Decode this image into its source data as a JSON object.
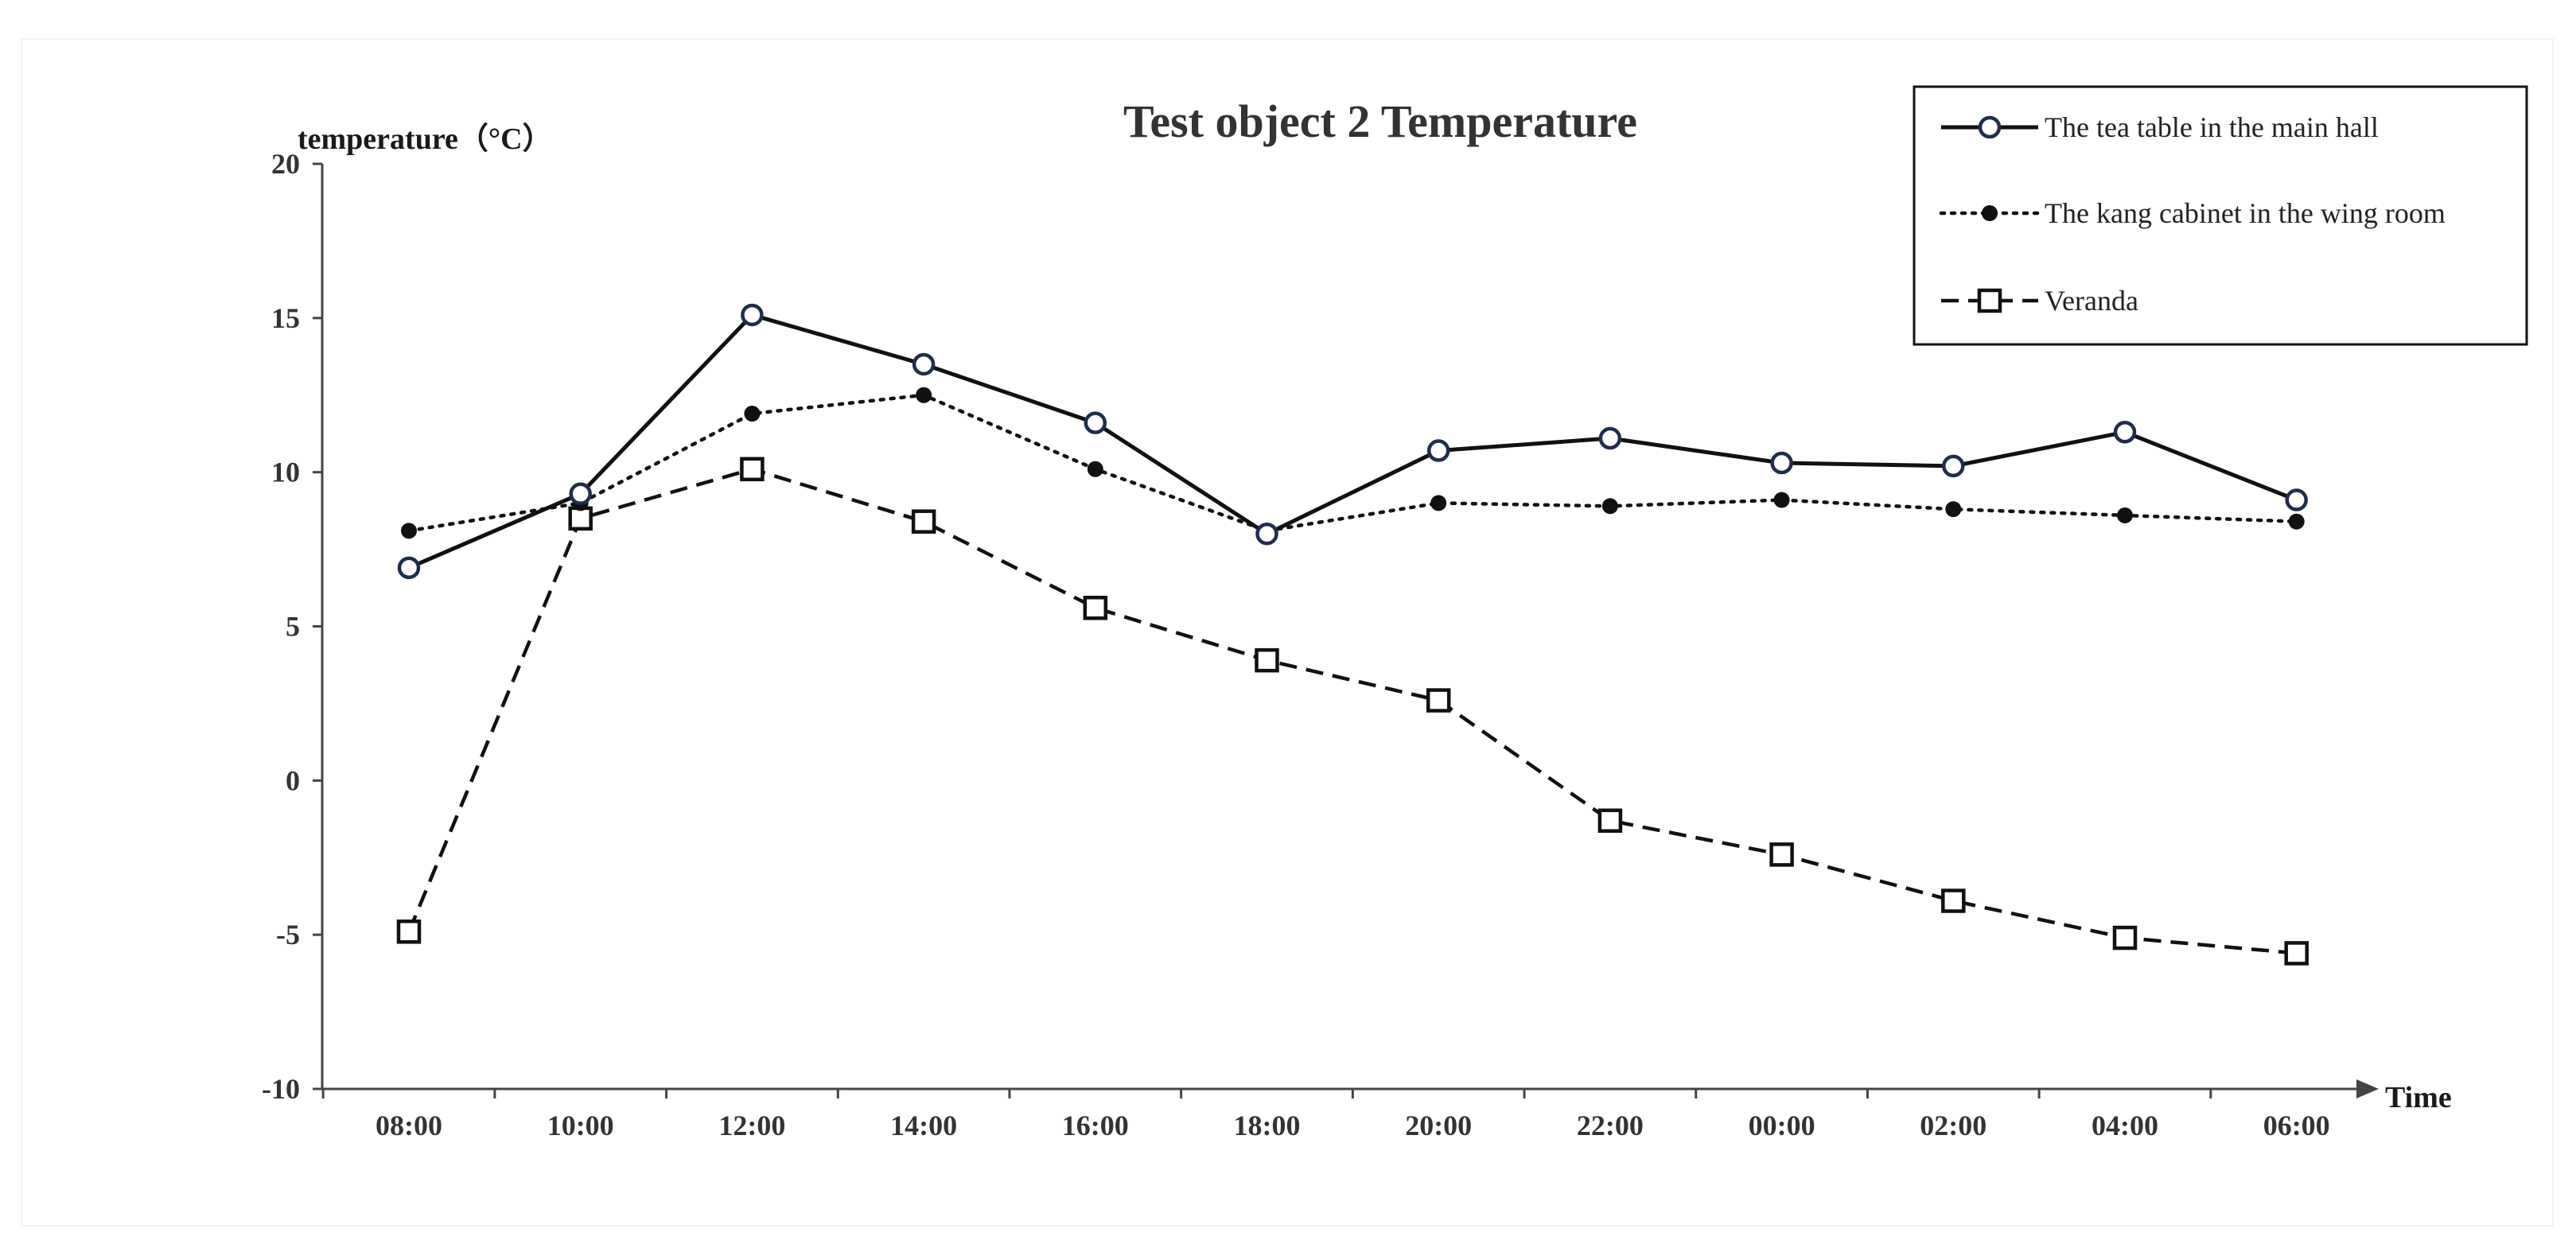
{
  "chart_data": {
    "type": "line",
    "title": "Test object 2 Temperature",
    "ylabel": "temperature（°C）",
    "xlabel": "Time",
    "ylim": [
      -10,
      20
    ],
    "yticks": [
      -10,
      -5,
      0,
      5,
      10,
      15,
      20
    ],
    "categories": [
      "08:00",
      "10:00",
      "12:00",
      "14:00",
      "16:00",
      "18:00",
      "20:00",
      "22:00",
      "00:00",
      "02:00",
      "04:00",
      "06:00"
    ],
    "grid": false,
    "legend_position": "top-right",
    "series": [
      {
        "name": "The tea table in the main hall",
        "style": "solid",
        "marker": "open-circle",
        "color": "#111111",
        "marker_edge": "#1f2d4d",
        "values": [
          6.9,
          9.3,
          15.1,
          13.5,
          11.6,
          8.0,
          10.7,
          11.1,
          10.3,
          10.2,
          11.3,
          9.1
        ]
      },
      {
        "name": "The kang cabinet in the wing room",
        "style": "dotted",
        "marker": "filled-circle",
        "color": "#111111",
        "values": [
          8.1,
          9.0,
          11.9,
          12.5,
          10.1,
          8.1,
          9.0,
          8.9,
          9.1,
          8.8,
          8.6,
          8.4
        ]
      },
      {
        "name": "Veranda",
        "style": "dashed",
        "marker": "open-square",
        "color": "#111111",
        "values": [
          -4.9,
          8.5,
          10.1,
          8.4,
          5.6,
          3.9,
          2.6,
          -1.3,
          -2.4,
          -3.9,
          -5.1,
          -5.6
        ]
      }
    ]
  }
}
